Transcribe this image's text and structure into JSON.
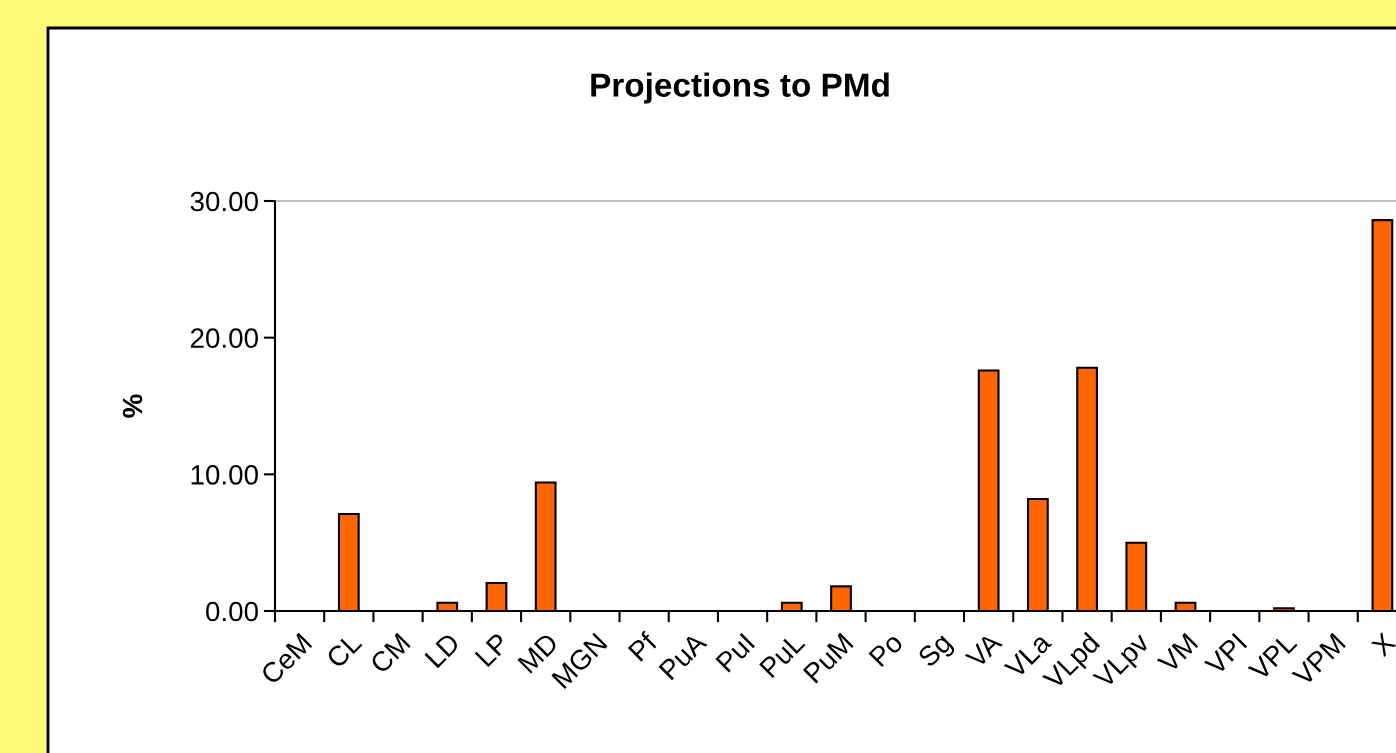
{
  "chart_data": {
    "type": "bar",
    "title": "Projections to PMd",
    "ylabel": "%",
    "categories": [
      "CeM",
      "CL",
      "CM",
      "LD",
      "LP",
      "MD",
      "MGN",
      "Pf",
      "PuA",
      "PuI",
      "PuL",
      "PuM",
      "Po",
      "Sg",
      "VA",
      "VLa",
      "VLpd",
      "VLpv",
      "VM",
      "VPI",
      "VPL",
      "VPM",
      "X"
    ],
    "values": [
      0,
      7.1,
      0,
      0.6,
      2.05,
      9.4,
      0,
      0,
      0,
      0,
      0.6,
      1.8,
      0,
      0,
      17.6,
      8.2,
      17.8,
      5.0,
      0.6,
      0,
      0.2,
      0,
      28.6
    ],
    "color": "#ff6600",
    "ylim": [
      0,
      30
    ],
    "yticks": [
      {
        "value": 0,
        "label": "0.00"
      },
      {
        "value": 10,
        "label": "10.00"
      },
      {
        "value": 20,
        "label": "20.00"
      },
      {
        "value": 30,
        "label": "30.00"
      }
    ],
    "grid": false
  }
}
